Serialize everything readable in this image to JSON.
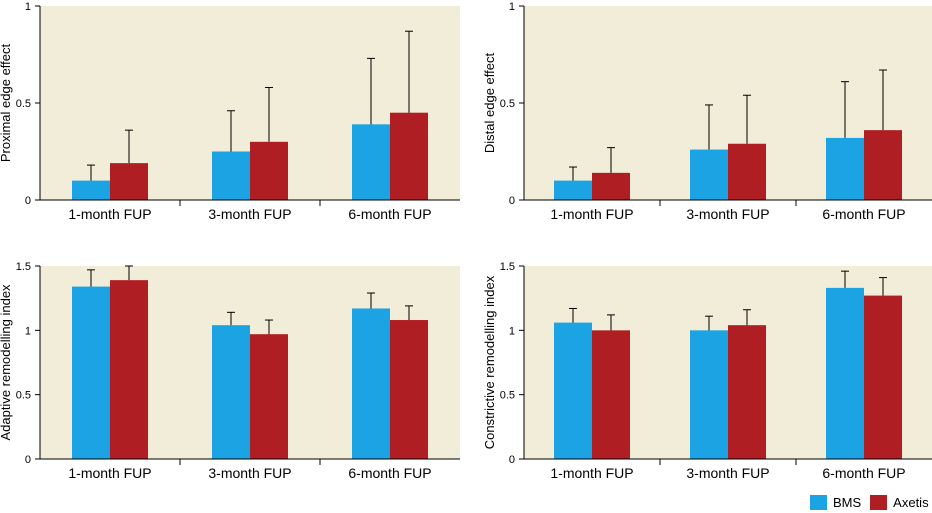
{
  "colors": {
    "plot_bg": "#F1EDD8",
    "bms": "#1BA3E3",
    "axetis": "#AF1E23",
    "axis": "#000000"
  },
  "legend": {
    "items": [
      {
        "label": "BMS"
      },
      {
        "label": "Axetis"
      }
    ],
    "placement": "bottom-right"
  },
  "chart_data": [
    {
      "type": "bar",
      "title": "",
      "xlabel": "",
      "ylabel": "Proximal edge effect",
      "ylim": [
        0,
        1
      ],
      "yticks": [
        "0",
        "0.5",
        "1"
      ],
      "categories": [
        "1-month FUP",
        "3-month FUP",
        "6-month FUP"
      ],
      "series": [
        {
          "name": "BMS",
          "values": [
            0.1,
            0.25,
            0.39
          ],
          "errors": [
            0.08,
            0.21,
            0.34
          ]
        },
        {
          "name": "Axetis",
          "values": [
            0.19,
            0.3,
            0.45
          ],
          "errors": [
            0.17,
            0.28,
            0.42
          ]
        }
      ],
      "grid": false
    },
    {
      "type": "bar",
      "title": "",
      "xlabel": "",
      "ylabel": "Distal edge effect",
      "ylim": [
        0,
        1
      ],
      "yticks": [
        "0",
        "0.5",
        "1"
      ],
      "categories": [
        "1-month FUP",
        "3-month FUP",
        "6-month FUP"
      ],
      "series": [
        {
          "name": "BMS",
          "values": [
            0.1,
            0.26,
            0.32
          ],
          "errors": [
            0.07,
            0.23,
            0.29
          ]
        },
        {
          "name": "Axetis",
          "values": [
            0.14,
            0.29,
            0.36
          ],
          "errors": [
            0.13,
            0.25,
            0.31
          ]
        }
      ],
      "grid": false
    },
    {
      "type": "bar",
      "title": "",
      "xlabel": "",
      "ylabel": "Adaptive remodelling index",
      "ylim": [
        0,
        1.5
      ],
      "yticks": [
        "0",
        "0.5",
        "1",
        "1.5"
      ],
      "categories": [
        "1-month FUP",
        "3-month FUP",
        "6-month FUP"
      ],
      "series": [
        {
          "name": "BMS",
          "values": [
            1.34,
            1.04,
            1.17
          ],
          "errors": [
            0.13,
            0.1,
            0.12
          ]
        },
        {
          "name": "Axetis",
          "values": [
            1.39,
            0.97,
            1.08
          ],
          "errors": [
            0.11,
            0.11,
            0.11
          ]
        }
      ],
      "grid": false
    },
    {
      "type": "bar",
      "title": "",
      "xlabel": "",
      "ylabel": "Constrictive remodelling index",
      "ylim": [
        0,
        1.5
      ],
      "yticks": [
        "0",
        "0.5",
        "1",
        "1.5"
      ],
      "categories": [
        "1-month FUP",
        "3-month FUP",
        "6-month FUP"
      ],
      "series": [
        {
          "name": "BMS",
          "values": [
            1.06,
            1.0,
            1.33
          ],
          "errors": [
            0.11,
            0.11,
            0.13
          ]
        },
        {
          "name": "Axetis",
          "values": [
            1.0,
            1.04,
            1.27
          ],
          "errors": [
            0.12,
            0.12,
            0.14
          ]
        }
      ],
      "grid": false
    }
  ]
}
